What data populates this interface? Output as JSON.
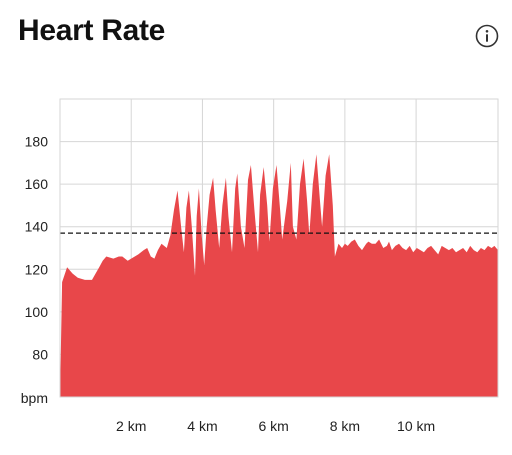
{
  "header": {
    "title": "Heart Rate",
    "info_icon": "info-icon"
  },
  "colors": {
    "area_fill": "#E8474A",
    "grid": "#D6D6D6",
    "reference_line": "#111111",
    "background": "#FFFFFF"
  },
  "chart_data": {
    "type": "area",
    "title": "Heart Rate",
    "xlabel": "",
    "ylabel": "bpm",
    "x_unit": "km",
    "xlim": [
      0,
      12.3
    ],
    "ylim": [
      60,
      200
    ],
    "y_ticks": [
      80,
      100,
      120,
      140,
      160,
      180
    ],
    "y_tick_labels": [
      "80",
      "100",
      "120",
      "140",
      "160",
      "180"
    ],
    "y_unit_label": "bpm",
    "x_ticks": [
      2,
      4,
      6,
      8,
      10
    ],
    "x_tick_labels": [
      "2 km",
      "4 km",
      "6 km",
      "8 km",
      "10 km"
    ],
    "grid": true,
    "reference_line": {
      "value": 137,
      "style": "dashed"
    },
    "series": [
      {
        "x": [
          0,
          0.06,
          0.2,
          0.35,
          0.5,
          0.7,
          0.9,
          1.0,
          1.1,
          1.2,
          1.3,
          1.5,
          1.65,
          1.75,
          1.9,
          2.0,
          2.2,
          2.35,
          2.45,
          2.55,
          2.65,
          2.75,
          2.85,
          3.0,
          3.1,
          3.2,
          3.3,
          3.4,
          3.48,
          3.55,
          3.62,
          3.7,
          3.79,
          3.84,
          3.9,
          3.98,
          4.05,
          4.12,
          4.2,
          4.3,
          4.37,
          4.47,
          4.56,
          4.66,
          4.73,
          4.83,
          4.92,
          4.98,
          5.08,
          5.18,
          5.28,
          5.36,
          5.46,
          5.56,
          5.62,
          5.72,
          5.82,
          5.88,
          5.98,
          6.08,
          6.18,
          6.24,
          6.38,
          6.48,
          6.54,
          6.64,
          6.74,
          6.84,
          6.94,
          7.0,
          7.1,
          7.2,
          7.3,
          7.36,
          7.46,
          7.56,
          7.66,
          7.72,
          7.82,
          7.92,
          8.0,
          8.08,
          8.18,
          8.28,
          8.38,
          8.48,
          8.6,
          8.66,
          8.76,
          8.86,
          8.96,
          9.08,
          9.18,
          9.24,
          9.32,
          9.42,
          9.52,
          9.62,
          9.72,
          9.82,
          9.92,
          10.02,
          10.12,
          10.22,
          10.32,
          10.42,
          10.52,
          10.62,
          10.72,
          10.82,
          10.92,
          11.02,
          11.12,
          11.22,
          11.32,
          11.42,
          11.52,
          11.62,
          11.72,
          11.82,
          11.92,
          12.02,
          12.12,
          12.2,
          12.3
        ],
        "y": [
          60,
          114,
          121,
          118,
          116,
          115,
          115,
          118,
          121,
          124,
          126,
          125,
          126,
          126,
          124,
          125,
          127,
          129,
          130,
          126,
          125,
          129,
          132,
          130,
          136,
          148,
          157,
          140,
          128,
          149,
          157,
          140,
          117,
          145,
          158,
          136,
          122,
          140,
          155,
          163,
          148,
          130,
          150,
          163,
          145,
          128,
          158,
          165,
          140,
          130,
          162,
          169,
          148,
          128,
          155,
          168,
          150,
          133,
          158,
          169,
          148,
          134,
          152,
          170,
          140,
          134,
          160,
          172,
          152,
          136,
          160,
          174,
          152,
          140,
          164,
          174,
          150,
          126,
          132,
          130,
          132,
          131,
          133,
          134,
          131,
          129,
          132,
          133,
          132,
          132,
          134,
          130,
          131,
          133,
          129,
          131,
          132,
          130,
          129,
          131,
          128,
          130,
          129,
          128,
          130,
          131,
          129,
          127,
          131,
          130,
          129,
          130,
          128,
          129,
          130,
          128,
          131,
          129,
          128,
          130,
          129,
          131,
          130,
          131,
          129
        ]
      }
    ]
  }
}
